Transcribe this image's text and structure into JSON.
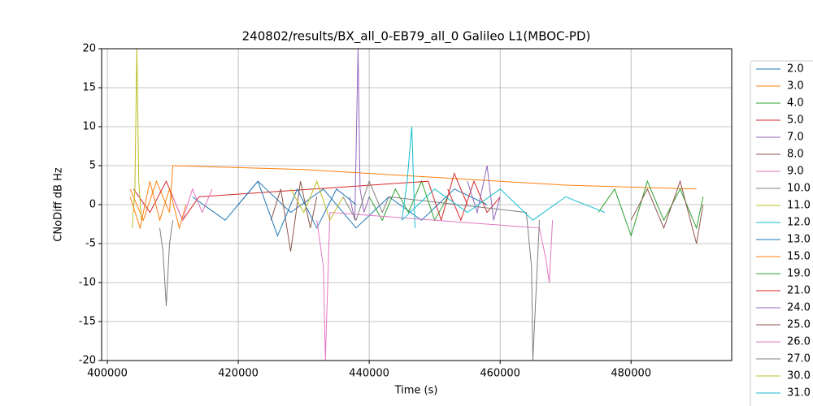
{
  "chart_data": {
    "type": "line",
    "title": "240802/results/BX_all_0-EB79_all_0 Galileo L1(MBOC-PD)",
    "xlabel": "Time (s)",
    "ylabel": "CNoDiff dB Hz",
    "xlim": [
      399125,
      495375
    ],
    "ylim": [
      -20,
      20
    ],
    "xticks": [
      400000,
      420000,
      440000,
      460000,
      480000
    ],
    "yticks": [
      -20,
      -15,
      -10,
      -5,
      0,
      5,
      10,
      15,
      20
    ],
    "grid": true,
    "legend": "outside-right",
    "series": [
      {
        "name": "2.0",
        "color": "#1f77b4",
        "x": [
          413000,
          418000,
          423000,
          428000,
          433000,
          438000,
          443000,
          448000,
          453000,
          458000
        ],
        "values": [
          1,
          -2,
          3,
          -1,
          2,
          -3,
          1,
          -2,
          2,
          0
        ]
      },
      {
        "name": "3.0",
        "color": "#ff7f0e",
        "x": [
          403500,
          405500,
          407500,
          409500,
          410000,
          430000,
          450000,
          470000,
          490000
        ],
        "values": [
          2,
          -2,
          3,
          -1,
          5,
          4.5,
          3.5,
          2.5,
          2
        ]
      },
      {
        "name": "4.0",
        "color": "#2ca02c",
        "x": [
          440000,
          442000,
          444000,
          446000,
          448000,
          450000,
          452000
        ],
        "values": [
          1,
          -2,
          2,
          -1,
          3,
          -2,
          1
        ]
      },
      {
        "name": "5.0",
        "color": "#d62728",
        "x": [
          404000,
          406500,
          409000,
          411500,
          414000,
          449000,
          451000,
          453000,
          455000
        ],
        "values": [
          2,
          -1,
          3,
          -2,
          1,
          3,
          -2,
          4,
          0
        ]
      },
      {
        "name": "7.0",
        "color": "#9467bd",
        "x": [
          437000,
          437800,
          438300,
          438600,
          439200,
          440000
        ],
        "values": [
          1,
          -2,
          20,
          2,
          -1,
          1
        ]
      },
      {
        "name": "8.0",
        "color": "#8c564b",
        "x": [
          425000,
          426500,
          428000,
          429500,
          431000,
          432000
        ],
        "values": [
          -2,
          2,
          -6,
          3,
          -3,
          1
        ]
      },
      {
        "name": "9.0",
        "color": "#e377c2",
        "x": [
          410000,
          411500,
          413000,
          414500,
          416000
        ],
        "values": [
          1,
          -2,
          2,
          -1,
          2
        ]
      },
      {
        "name": "10.0",
        "color": "#7f7f7f",
        "x": [
          408000,
          408500,
          409000,
          409500,
          410000
        ],
        "values": [
          -3,
          -6,
          -13,
          -5,
          -2
        ]
      },
      {
        "name": "11.0",
        "color": "#bcbd22",
        "x": [
          403800,
          404200,
          404500,
          404800,
          405200
        ],
        "values": [
          -3,
          2,
          20,
          3,
          -2
        ]
      },
      {
        "name": "12.0",
        "color": "#17becf",
        "x": [
          445000,
          445800,
          446500,
          447000
        ],
        "values": [
          -2,
          3,
          10,
          -3
        ]
      },
      {
        "name": "13.0",
        "color": "#1f77b4",
        "x": [
          420000,
          423000,
          426000,
          429000,
          432000,
          435000,
          438000
        ],
        "values": [
          0,
          3,
          -4,
          2,
          -3,
          2,
          0
        ]
      },
      {
        "name": "15.0",
        "color": "#ff7f0e",
        "x": [
          403500,
          405000,
          406500,
          408000,
          409500,
          411000,
          412000
        ],
        "values": [
          1,
          -3,
          3,
          -2,
          2,
          -3,
          0
        ]
      },
      {
        "name": "19.0",
        "color": "#2ca02c",
        "x": [
          475000,
          477500,
          480000,
          482500,
          485000,
          487500,
          490000,
          491000
        ],
        "values": [
          -1,
          2,
          -4,
          3,
          -2,
          2,
          -3,
          1
        ]
      },
      {
        "name": "21.0",
        "color": "#d62728",
        "x": [
          452000,
          454000,
          456000,
          458000,
          460000
        ],
        "values": [
          2,
          -2,
          3,
          -1,
          1
        ]
      },
      {
        "name": "24.0",
        "color": "#9467bd",
        "x": [
          455000,
          456500,
          458000,
          459000,
          460000
        ],
        "values": [
          3,
          -1,
          5,
          -2,
          1
        ]
      },
      {
        "name": "25.0",
        "color": "#8c564b",
        "x": [
          480000,
          482500,
          485000,
          487500,
          490000,
          491000
        ],
        "values": [
          -2,
          2,
          -3,
          3,
          -5,
          0
        ]
      },
      {
        "name": "26.0",
        "color": "#e377c2",
        "x": [
          432000,
          433000,
          433300,
          434000,
          466000,
          467000,
          467500,
          468000
        ],
        "values": [
          -2,
          -8,
          -20,
          -1,
          -3,
          -7,
          -10,
          -2
        ]
      },
      {
        "name": "27.0",
        "color": "#7f7f7f",
        "x": [
          436000,
          438000,
          440000,
          442000,
          443000,
          464000,
          464800,
          465000,
          466000
        ],
        "values": [
          1,
          -2,
          3,
          -1,
          1,
          -1,
          -8,
          -20,
          -2
        ]
      },
      {
        "name": "30.0",
        "color": "#bcbd22",
        "x": [
          428000,
          430000,
          432000,
          434000,
          436000
        ],
        "values": [
          2,
          -1,
          3,
          -2,
          1
        ]
      },
      {
        "name": "31.0",
        "color": "#17becf",
        "x": [
          445000,
          450000,
          455000,
          460000,
          465000,
          470000,
          476000
        ],
        "values": [
          -2,
          2,
          -1,
          2,
          -2,
          1,
          -1
        ]
      }
    ]
  }
}
